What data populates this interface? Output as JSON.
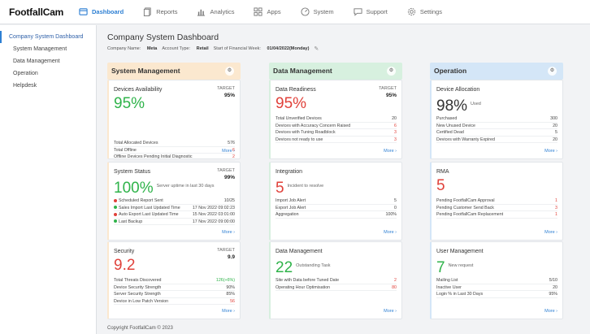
{
  "logo": "FootfallCam",
  "nav": [
    {
      "label": "Dashboard",
      "icon": "dashboard-icon"
    },
    {
      "label": "Reports",
      "icon": "reports-icon"
    },
    {
      "label": "Analytics",
      "icon": "analytics-icon"
    },
    {
      "label": "Apps",
      "icon": "apps-icon"
    },
    {
      "label": "System",
      "icon": "system-icon"
    },
    {
      "label": "Support",
      "icon": "support-icon"
    },
    {
      "label": "Settings",
      "icon": "gear-icon"
    }
  ],
  "sidebar": [
    {
      "label": "Company System Dashboard"
    },
    {
      "label": "System Management"
    },
    {
      "label": "Data Management"
    },
    {
      "label": "Operation"
    },
    {
      "label": "Helpdesk"
    }
  ],
  "page": {
    "title": "Company System Dashboard",
    "company_label": "Company Name:",
    "company_value": "Meta",
    "account_label": "Account Type:",
    "account_value": "Retail",
    "week_label": "Start of Financial Week:",
    "week_value": "01/04/2022(Monday)"
  },
  "columns": {
    "system": "System Management",
    "data": "Data Management",
    "operation": "Operation"
  },
  "colors": {
    "system": "#fbe8cf",
    "data": "#d7f0df",
    "operation": "#d4e6f7"
  },
  "more": "More ›",
  "cards": {
    "devices": {
      "title": "Devices Availability",
      "target_label": "TARGET",
      "target": "95%",
      "big": "95%",
      "rows": [
        {
          "l": "Total Allocated Devices",
          "v": "576"
        },
        {
          "l": "Total Offline",
          "v": "6"
        },
        {
          "l": "Offline Devices Pending Initial Diagnostic",
          "v": "2"
        }
      ]
    },
    "readiness": {
      "title": "Data Readiness",
      "target_label": "TARGET",
      "target": "95%",
      "big": "95%",
      "rows": [
        {
          "l": "Total Unverified Devices",
          "v": "20"
        },
        {
          "l": "Devices with Accuracy Concern Raised",
          "v": "6"
        },
        {
          "l": "Devices with Tuning Roadblock",
          "v": "3"
        },
        {
          "l": "Devices not ready to use",
          "v": "3"
        }
      ]
    },
    "allocation": {
      "title": "Device Allocation",
      "big": "98%",
      "sub": "Used",
      "rows": [
        {
          "l": "Purchased",
          "v": "300"
        },
        {
          "l": "New Unused Device",
          "v": "20"
        },
        {
          "l": "Certified Dead",
          "v": "5"
        },
        {
          "l": "Devices with Warranty Expired",
          "v": "20"
        }
      ]
    },
    "status": {
      "title": "System Status",
      "target_label": "TARGET",
      "target": "99%",
      "big": "100%",
      "sub": "Server uptime in last 30 days",
      "rows": [
        {
          "l": "Scheduled Report Sent",
          "v": "10/25"
        },
        {
          "l": "Sales Import Last Updated Time",
          "v": "17 Nov 2022 09:02:23"
        },
        {
          "l": "Auto Export Last Updated Time",
          "v": "15 Nov 2022 03:01:00"
        },
        {
          "l": "Last Backup",
          "v": "17 Nov 2022 09:00:00"
        }
      ]
    },
    "integration": {
      "title": "Integration",
      "big": "5",
      "sub": "Incident to resolve",
      "rows": [
        {
          "l": "Import Job Alert",
          "v": "5"
        },
        {
          "l": "Export Job Alert",
          "v": "0"
        },
        {
          "l": "Aggregation",
          "v": "100%"
        }
      ]
    },
    "rma": {
      "title": "RMA",
      "big": "5",
      "rows": [
        {
          "l": "Pending FootfallCam Approval",
          "v": "1"
        },
        {
          "l": "Pending Customer Send Back",
          "v": "3"
        },
        {
          "l": "Pending FootfallCam Replacement",
          "v": "1"
        }
      ]
    },
    "security": {
      "title": "Security",
      "target_label": "TARGET",
      "target": "9.9",
      "big": "9.2",
      "rows": [
        {
          "l": "Total Threats Discovered",
          "v": "126(+6%)"
        },
        {
          "l": "Device Security Strength",
          "v": "90%"
        },
        {
          "l": "Server Security Strength",
          "v": "85%"
        },
        {
          "l": "Device in Low Patch Version",
          "v": "56"
        }
      ]
    },
    "datamgmt": {
      "title": "Data Management",
      "big": "22",
      "sub": "Outstanding Task",
      "rows": [
        {
          "l": "Site with Data before Tuned Date",
          "v": "2"
        },
        {
          "l": "Operating Hour Optimisation",
          "v": "80"
        }
      ]
    },
    "users": {
      "title": "User Management",
      "big": "7",
      "sub": "New request",
      "rows": [
        {
          "l": "Mailing List",
          "v": "5/10"
        },
        {
          "l": "Inactive User",
          "v": "20"
        },
        {
          "l": "Login % in Last 30 Days",
          "v": "95%"
        }
      ]
    }
  },
  "footer": "Copyright FootfallCam © 2023"
}
